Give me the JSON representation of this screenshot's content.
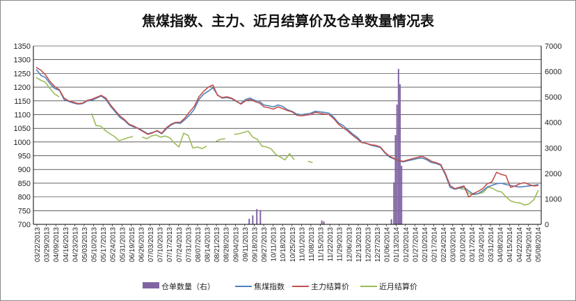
{
  "chart_data": {
    "type": "line",
    "title": "焦煤指数、主力、近月结算价及仓单数量情况表",
    "x_tick_labels": [
      "03/22/2013",
      "03/29/2013",
      "04/09/2013",
      "04/16/2013",
      "04/23/2013",
      "05/03/2013",
      "05/10/2013",
      "05/17/2013",
      "05/24/2013",
      "05/31/2013",
      "06/19/2015",
      "06/26/2013",
      "07/03/2013",
      "07/10/2013",
      "07/17/2013",
      "07/24/2013",
      "07/31/2013",
      "08/07/2013",
      "08/14/2013",
      "08/21/2013",
      "08/28/2013",
      "09/04/2013",
      "09/11/2013",
      "09/18/2013",
      "09/27/2013",
      "10/11/2013",
      "10/18/2013",
      "10/25/2013",
      "11/01/2013",
      "11/08/2013",
      "11/15/2013",
      "11/22/2013",
      "11/29/2013",
      "12/06/2013",
      "12/13/2013",
      "12/20/2013",
      "12/27/2013",
      "01/06/2014",
      "01/13/2014",
      "01/20/2014",
      "01/27/2014",
      "02/10/2014",
      "02/17/2014",
      "02/24/2014",
      "03/03/2014",
      "03/10/2014",
      "03/17/2014",
      "03/24/2014",
      "03/31/2014",
      "04/08/2014",
      "04/15/2014",
      "04/22/2014",
      "04/29/2014",
      "05/08/2014"
    ],
    "y_left": {
      "min": 700,
      "max": 1350,
      "step": 50
    },
    "y_right": {
      "min": 0,
      "max": 7000,
      "step": 1000
    },
    "grid": true,
    "legend_position": "bottom",
    "colors": {
      "bar": "#8064a2",
      "index": "#4f81bd",
      "main": "#c0504d",
      "near": "#9bbb59"
    },
    "series": [
      {
        "name": "焦煤指数",
        "axis": "left",
        "values": [
          1265,
          1243,
          1235,
          1212,
          1195,
          1188,
          1155,
          1148,
          1142,
          1138,
          1140,
          1150,
          1152,
          1160,
          1168,
          1155,
          1130,
          1110,
          1090,
          1078,
          1062,
          1055,
          1050,
          1040,
          1030,
          1035,
          1040,
          1030,
          1048,
          1062,
          1070,
          1068,
          1082,
          1098,
          1120,
          1155,
          1175,
          1185,
          1198,
          1172,
          1160,
          1162,
          1158,
          1148,
          1140,
          1155,
          1160,
          1152,
          1148,
          1135,
          1132,
          1128,
          1135,
          1130,
          1118,
          1112,
          1102,
          1100,
          1102,
          1105,
          1112,
          1110,
          1108,
          1105,
          1090,
          1070,
          1060,
          1045,
          1030,
          1018,
          1000,
          995,
          988,
          985,
          980,
          960,
          945,
          938,
          930,
          928,
          932,
          936,
          940,
          942,
          935,
          925,
          922,
          915,
          880,
          835,
          828,
          832,
          836,
          822,
          810,
          812,
          822,
          836,
          842,
          848,
          850,
          845,
          842,
          838,
          836,
          838,
          840,
          842,
          845
        ]
      },
      {
        "name": "主力结算价",
        "axis": "left",
        "values": [
          1272,
          1262,
          1245,
          1220,
          1202,
          1190,
          1160,
          1150,
          1145,
          1140,
          1142,
          1152,
          1156,
          1163,
          1170,
          1160,
          1135,
          1115,
          1095,
          1082,
          1065,
          1058,
          1048,
          1038,
          1028,
          1033,
          1042,
          1032,
          1052,
          1065,
          1072,
          1072,
          1088,
          1110,
          1130,
          1165,
          1185,
          1200,
          1208,
          1170,
          1162,
          1165,
          1160,
          1150,
          1138,
          1150,
          1155,
          1148,
          1142,
          1128,
          1125,
          1120,
          1128,
          1122,
          1115,
          1110,
          1098,
          1095,
          1098,
          1100,
          1108,
          1105,
          1102,
          1100,
          1085,
          1065,
          1052,
          1040,
          1025,
          1012,
          998,
          995,
          990,
          988,
          982,
          962,
          948,
          940,
          932,
          930,
          935,
          940,
          944,
          948,
          940,
          930,
          925,
          918,
          885,
          842,
          830,
          835,
          840,
          800,
          812,
          820,
          830,
          848,
          855,
          890,
          882,
          878,
          835,
          840,
          848,
          852,
          845,
          840,
          842
        ]
      },
      {
        "name": "近月结算价",
        "axis": "left",
        "values": [
          1235,
          1225,
          1218,
          1195,
          1175,
          1165,
          null,
          null,
          1148,
          null,
          1128,
          null,
          1105,
          1060,
          1058,
          1042,
          1030,
          1020,
          1005,
          1010,
          1016,
          1020,
          null,
          1018,
          1012,
          1022,
          1026,
          1018,
          1022,
          1015,
          996,
          982,
          1032,
          1024,
          978,
          982,
          976,
          985,
          null,
          1002,
          1010,
          1012,
          null,
          1028,
          1030,
          1035,
          1040,
          1018,
          1010,
          985,
          982,
          975,
          955,
          945,
          935,
          958,
          935,
          null,
          null,
          930,
          925,
          null,
          915,
          null,
          null,
          null,
          null,
          null,
          null,
          null,
          null,
          null,
          null,
          null,
          null,
          null,
          null,
          null,
          null,
          null,
          null,
          null,
          null,
          null,
          null,
          null,
          null,
          null,
          null,
          null,
          null,
          null,
          830,
          828,
          812,
          808,
          812,
          816,
          835,
          832,
          822,
          818,
          800,
          785,
          780,
          778,
          770,
          775,
          790,
          825
        ]
      },
      {
        "name": "仓单数量（右）",
        "axis": "right",
        "type": "bar",
        "points": [
          [
            0.425,
            220
          ],
          [
            0.432,
            350
          ],
          [
            0.44,
            600
          ],
          [
            0.447,
            560
          ],
          [
            0.568,
            150
          ],
          [
            0.572,
            120
          ],
          [
            0.705,
            200
          ],
          [
            0.71,
            1650
          ],
          [
            0.713,
            3500
          ],
          [
            0.716,
            4700
          ],
          [
            0.719,
            6100
          ],
          [
            0.722,
            5500
          ],
          [
            0.725,
            2300
          ]
        ]
      }
    ]
  }
}
